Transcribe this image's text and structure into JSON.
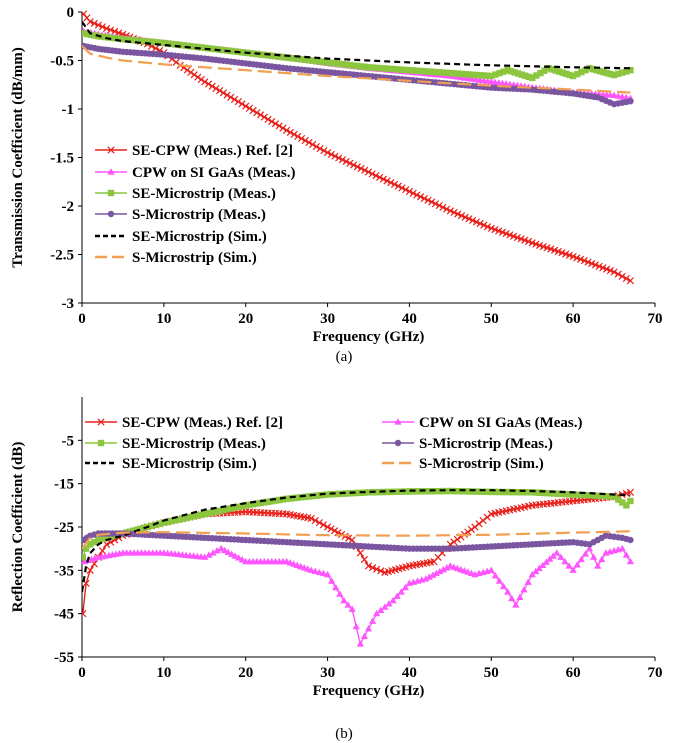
{
  "chart_data": [
    {
      "type": "line",
      "caption": "(a)",
      "xlabel": "Frequency (GHz)",
      "ylabel": "Transmission Coefficient (dB/mm)",
      "xlim": [
        0,
        70
      ],
      "ylim": [
        -3,
        0
      ],
      "xticks": [
        0,
        10,
        20,
        30,
        40,
        50,
        60,
        70
      ],
      "yticks": [
        0,
        -0.5,
        -1,
        -1.5,
        -2,
        -2.5,
        -3
      ],
      "ytick_labels": [
        "0",
        "-0.5",
        "-1",
        "-1.5",
        "-2",
        "-2.5",
        "-3"
      ],
      "grid": false,
      "legend_position": "bottom-left",
      "series": [
        {
          "name": "SE-CPW (Meas.) Ref. [2]",
          "color": "#e8201a",
          "marker": "x",
          "x": [
            0.2,
            1,
            3,
            5,
            8,
            10,
            12,
            15,
            20,
            25,
            30,
            35,
            40,
            45,
            50,
            55,
            60,
            65,
            67
          ],
          "y": [
            -0.02,
            -0.1,
            -0.17,
            -0.23,
            -0.33,
            -0.42,
            -0.55,
            -0.72,
            -0.97,
            -1.22,
            -1.45,
            -1.65,
            -1.85,
            -2.05,
            -2.23,
            -2.38,
            -2.52,
            -2.68,
            -2.77
          ]
        },
        {
          "name": "CPW on SI GaAs (Meas.)",
          "color": "#ff55ff",
          "marker": "triangle",
          "x": [
            0.2,
            2,
            5,
            10,
            15,
            20,
            25,
            30,
            35,
            40,
            45,
            50,
            55,
            60,
            65,
            67
          ],
          "y": [
            -0.2,
            -0.23,
            -0.27,
            -0.32,
            -0.37,
            -0.42,
            -0.47,
            -0.53,
            -0.58,
            -0.62,
            -0.66,
            -0.72,
            -0.78,
            -0.83,
            -0.86,
            -0.89
          ]
        },
        {
          "name": "SE-Microstrip (Meas.)",
          "color": "#8cc63f",
          "marker": "square",
          "x": [
            0.2,
            2,
            5,
            10,
            15,
            20,
            25,
            30,
            35,
            40,
            45,
            50,
            52,
            55,
            57,
            60,
            62,
            65,
            67
          ],
          "y": [
            -0.22,
            -0.25,
            -0.28,
            -0.32,
            -0.37,
            -0.42,
            -0.47,
            -0.52,
            -0.57,
            -0.6,
            -0.63,
            -0.66,
            -0.6,
            -0.68,
            -0.58,
            -0.66,
            -0.58,
            -0.65,
            -0.6
          ]
        },
        {
          "name": "S-Microstrip (Meas.)",
          "color": "#7a55a0",
          "marker": "circle",
          "x": [
            0.2,
            2,
            5,
            10,
            15,
            20,
            25,
            30,
            35,
            40,
            45,
            50,
            55,
            60,
            63,
            65,
            67
          ],
          "y": [
            -0.35,
            -0.38,
            -0.41,
            -0.44,
            -0.48,
            -0.53,
            -0.58,
            -0.62,
            -0.66,
            -0.7,
            -0.74,
            -0.78,
            -0.8,
            -0.84,
            -0.88,
            -0.95,
            -0.92
          ]
        },
        {
          "name": "SE-Microstrip (Sim.)",
          "color": "#000000",
          "marker": "none",
          "dash": "6,4",
          "x": [
            0,
            1,
            3,
            5,
            10,
            20,
            30,
            40,
            50,
            60,
            67
          ],
          "y": [
            -0.1,
            -0.22,
            -0.27,
            -0.3,
            -0.34,
            -0.42,
            -0.48,
            -0.52,
            -0.55,
            -0.57,
            -0.58
          ]
        },
        {
          "name": "S-Microstrip (Sim.)",
          "color": "#f0a050",
          "marker": "none",
          "dash": "14,6",
          "x": [
            0,
            1,
            3,
            5,
            10,
            20,
            30,
            40,
            50,
            60,
            67
          ],
          "y": [
            -0.35,
            -0.43,
            -0.47,
            -0.5,
            -0.54,
            -0.6,
            -0.66,
            -0.71,
            -0.76,
            -0.8,
            -0.83
          ]
        }
      ]
    },
    {
      "type": "line",
      "caption": "(b)",
      "xlabel": "Frequency (GHz)",
      "ylabel": "Reflection Coefficient (dB)",
      "xlim": [
        0,
        70
      ],
      "ylim": [
        -55,
        5
      ],
      "xticks": [
        0,
        10,
        20,
        30,
        40,
        50,
        60,
        70
      ],
      "yticks": [
        -5,
        -15,
        -25,
        -35,
        -45,
        -55
      ],
      "ytick_labels": [
        "-5",
        "-15",
        "-25",
        "-35",
        "-45",
        "-55"
      ],
      "grid": false,
      "legend_position": "top",
      "series": [
        {
          "name": "SE-CPW (Meas.) Ref. [2]",
          "color": "#e8201a",
          "marker": "x",
          "x": [
            0.1,
            0.5,
            1,
            2,
            3,
            5,
            8,
            10,
            15,
            20,
            25,
            28,
            30,
            33,
            35,
            37,
            40,
            43,
            45,
            48,
            50,
            55,
            60,
            65,
            67
          ],
          "y": [
            -45,
            -38,
            -35,
            -32,
            -29,
            -27,
            -25,
            -24,
            -22,
            -21.5,
            -22,
            -23,
            -25,
            -28,
            -34,
            -35.5,
            -34,
            -33,
            -29,
            -25,
            -22,
            -20,
            -19,
            -18,
            -17
          ]
        },
        {
          "name": "CPW on SI GaAs (Meas.)",
          "color": "#ff55ff",
          "marker": "triangle",
          "x": [
            0.3,
            2,
            5,
            10,
            15,
            17,
            20,
            25,
            28,
            30,
            32,
            33,
            34,
            36,
            38,
            40,
            42,
            45,
            48,
            50,
            52,
            53,
            55,
            58,
            60,
            62,
            63,
            64,
            66,
            67
          ],
          "y": [
            -33,
            -32,
            -31,
            -31,
            -32,
            -30,
            -33,
            -33,
            -35,
            -36,
            -42,
            -44,
            -52,
            -45,
            -42,
            -38,
            -37,
            -34,
            -36,
            -35,
            -40,
            -43,
            -36,
            -31,
            -35,
            -30,
            -34,
            -31,
            -30,
            -33
          ]
        },
        {
          "name": "SE-Microstrip (Meas.)",
          "color": "#8cc63f",
          "marker": "square",
          "x": [
            0.1,
            0.5,
            1,
            2,
            3,
            5,
            8,
            10,
            15,
            20,
            25,
            30,
            35,
            40,
            45,
            50,
            55,
            60,
            65,
            66.5,
            67
          ],
          "y": [
            -32,
            -30,
            -29,
            -28,
            -27.5,
            -26.5,
            -25,
            -24,
            -22,
            -20,
            -18.5,
            -17.5,
            -17,
            -16.8,
            -16.7,
            -16.9,
            -17,
            -17.5,
            -18,
            -20,
            -19
          ]
        },
        {
          "name": "S-Microstrip (Meas.)",
          "color": "#7a55a0",
          "marker": "circle",
          "x": [
            0.2,
            1,
            2,
            5,
            10,
            15,
            20,
            25,
            30,
            35,
            40,
            45,
            50,
            55,
            60,
            62,
            64,
            66,
            67
          ],
          "y": [
            -28,
            -27,
            -26.5,
            -26.5,
            -27,
            -27.5,
            -28,
            -28.5,
            -29,
            -29.5,
            -30,
            -30,
            -29.5,
            -29,
            -28.5,
            -29,
            -27,
            -27.5,
            -28
          ]
        },
        {
          "name": "SE-Microstrip (Sim.)",
          "color": "#000000",
          "marker": "none",
          "dash": "6,4",
          "x": [
            0,
            0.5,
            1,
            2,
            3,
            5,
            8,
            10,
            15,
            20,
            25,
            30,
            35,
            40,
            45,
            50,
            55,
            60,
            65,
            67
          ],
          "y": [
            -40,
            -34,
            -31,
            -29,
            -28,
            -27,
            -25,
            -23.5,
            -21,
            -19.5,
            -18.2,
            -17.3,
            -16.9,
            -16.6,
            -16.5,
            -16.5,
            -16.7,
            -17,
            -17.5,
            -17.7
          ]
        },
        {
          "name": "S-Microstrip (Sim.)",
          "color": "#f0a050",
          "marker": "none",
          "dash": "14,6",
          "x": [
            0,
            1,
            2,
            5,
            10,
            20,
            30,
            40,
            50,
            60,
            67
          ],
          "y": [
            -30,
            -27.5,
            -26.8,
            -26.3,
            -26.2,
            -26.5,
            -26.9,
            -27,
            -26.8,
            -26.3,
            -26
          ]
        }
      ]
    }
  ]
}
